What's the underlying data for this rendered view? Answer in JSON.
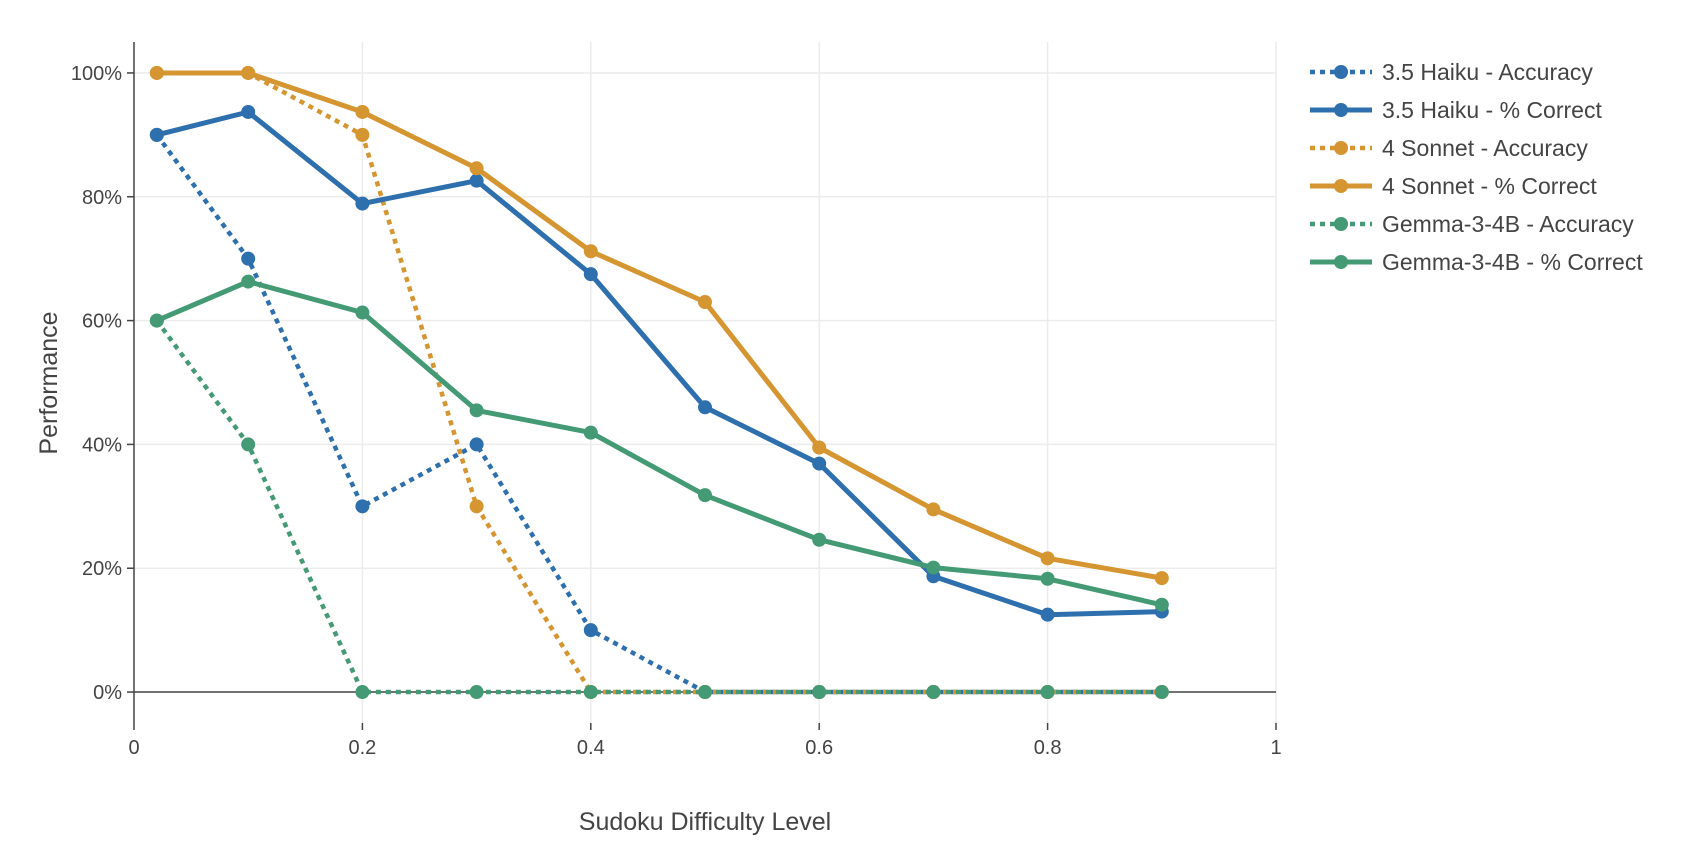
{
  "chart_data": {
    "type": "line",
    "xlabel": "Sudoku Difficulty Level",
    "ylabel": "Performance",
    "xlim": [
      0,
      1
    ],
    "ylim": [
      -0.05,
      1.05
    ],
    "x_ticks": [
      0,
      0.2,
      0.4,
      0.6,
      0.8,
      1
    ],
    "x_tick_labels": [
      "0",
      "0.2",
      "0.4",
      "0.6",
      "0.8",
      "1"
    ],
    "y_ticks": [
      0,
      0.2,
      0.4,
      0.6,
      0.8,
      1
    ],
    "y_tick_labels": [
      "0%",
      "20%",
      "40%",
      "60%",
      "80%",
      "100%"
    ],
    "grid": true,
    "legend_position": "top-right, outside plot",
    "x": [
      0.02,
      0.1,
      0.2,
      0.3,
      0.4,
      0.5,
      0.6,
      0.7,
      0.8,
      0.9
    ],
    "series": [
      {
        "name": "3.5 Haiku - Accuracy",
        "color": "#2e6fad",
        "style": "dotted",
        "values": [
          0.9,
          0.7,
          0.3,
          0.4,
          0.1,
          0.0,
          0.0,
          0.0,
          0.0,
          0.0
        ]
      },
      {
        "name": "3.5 Haiku - % Correct",
        "color": "#2e6fad",
        "style": "solid",
        "values": [
          0.9,
          0.937,
          0.789,
          0.826,
          0.675,
          0.46,
          0.369,
          0.187,
          0.125,
          0.13
        ]
      },
      {
        "name": "4 Sonnet - Accuracy",
        "color": "#d59530",
        "style": "dotted",
        "values": [
          1.0,
          1.0,
          0.9,
          0.3,
          0.0,
          0.0,
          0.0,
          0.0,
          0.0,
          0.0
        ]
      },
      {
        "name": "4 Sonnet - % Correct",
        "color": "#d59530",
        "style": "solid",
        "values": [
          1.0,
          1.0,
          0.937,
          0.846,
          0.712,
          0.63,
          0.395,
          0.295,
          0.216,
          0.184
        ]
      },
      {
        "name": "Gemma-3-4B - Accuracy",
        "color": "#449a74",
        "style": "dotted",
        "values": [
          0.6,
          0.4,
          0.0,
          0.0,
          0.0,
          0.0,
          0.0,
          0.0,
          0.0,
          0.0
        ]
      },
      {
        "name": "Gemma-3-4B - % Correct",
        "color": "#449a74",
        "style": "solid",
        "values": [
          0.6,
          0.663,
          0.613,
          0.455,
          0.419,
          0.318,
          0.246,
          0.201,
          0.183,
          0.141
        ]
      }
    ]
  }
}
